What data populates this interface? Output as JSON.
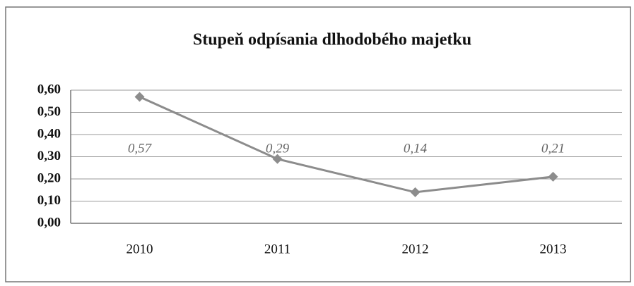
{
  "chart_data": {
    "type": "line",
    "title": "Stupeň odpísania dlhodobého majetku",
    "categories": [
      "2010",
      "2011",
      "2012",
      "2013"
    ],
    "values": [
      0.57,
      0.29,
      0.14,
      0.21
    ],
    "value_labels": [
      "0,57",
      "0,29",
      "0,14",
      "0,21"
    ],
    "color": "#8c8c8c",
    "ylim": [
      0,
      0.6
    ],
    "yticks": [
      {
        "value": 0,
        "label": "0,00"
      },
      {
        "value": 0.1,
        "label": "0,10"
      },
      {
        "value": 0.2,
        "label": "0,20"
      },
      {
        "value": 0.3,
        "label": "0,30"
      },
      {
        "value": 0.4,
        "label": "0,40"
      },
      {
        "value": 0.5,
        "label": "0,50"
      },
      {
        "value": 0.6,
        "label": "0,60"
      }
    ],
    "grid": true
  }
}
